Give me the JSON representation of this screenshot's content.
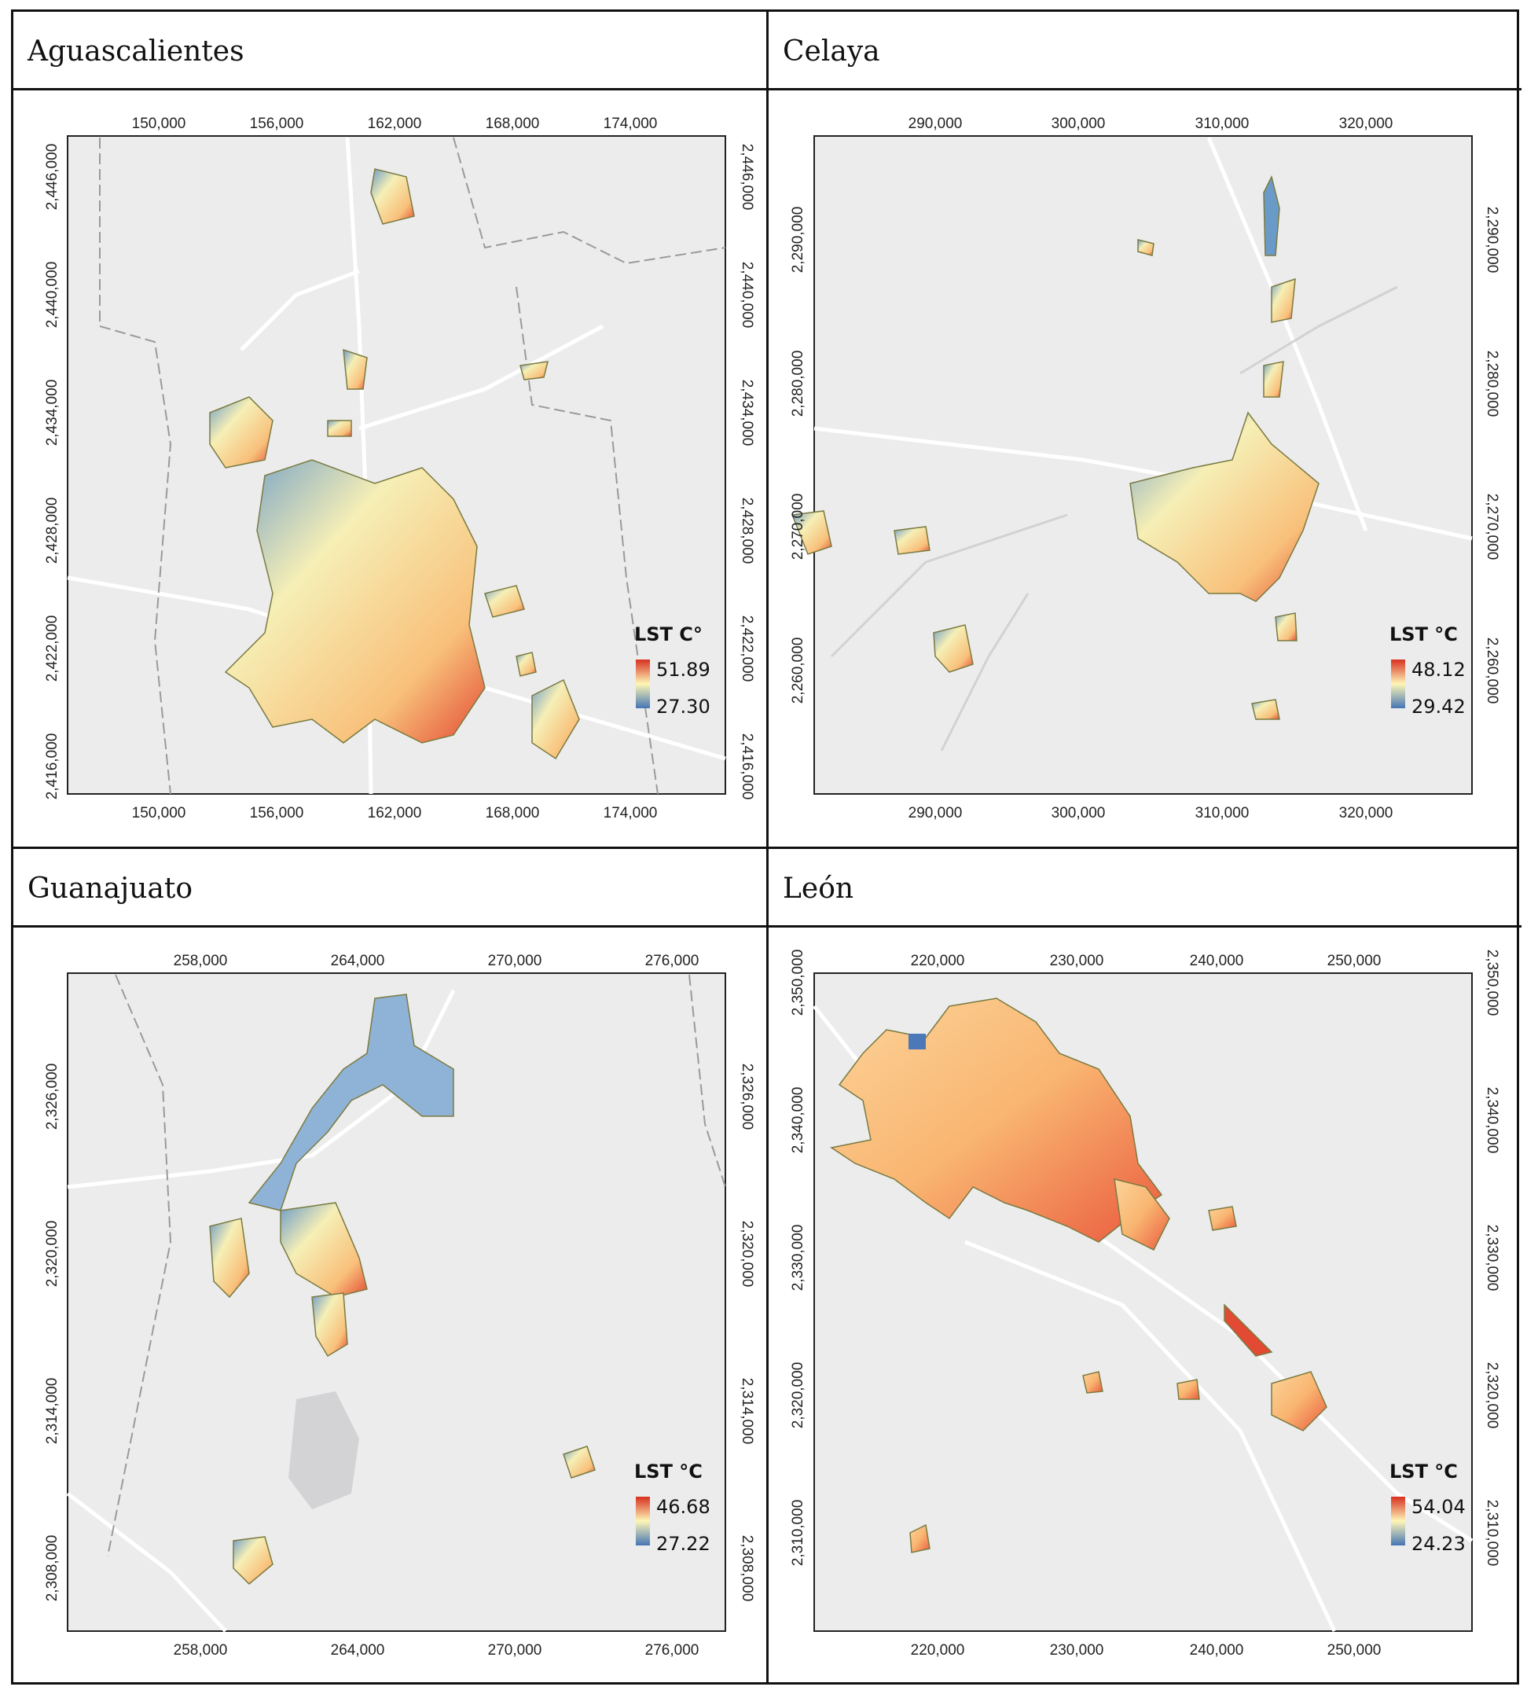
{
  "panels": [
    {
      "title": "Aguascalientes",
      "x_ticks": [
        "150,000",
        "156,000",
        "162,000",
        "168,000",
        "174,000"
      ],
      "y_ticks": [
        "2,446,000",
        "2,440,000",
        "2,434,000",
        "2,428,000",
        "2,422,000",
        "2,416,000"
      ],
      "legend": {
        "title": "LST C°",
        "max": "51.89",
        "min": "27.30"
      }
    },
    {
      "title": "Celaya",
      "x_ticks": [
        "290,000",
        "300,000",
        "310,000",
        "320,000"
      ],
      "y_ticks": [
        "2,290,000",
        "2,280,000",
        "2,270,000",
        "2,260,000"
      ],
      "legend": {
        "title": "LST °C",
        "max": "48.12",
        "min": "29.42"
      }
    },
    {
      "title": "Guanajuato",
      "x_ticks": [
        "258,000",
        "264,000",
        "270,000",
        "276,000"
      ],
      "y_ticks": [
        "2,326,000",
        "2,320,000",
        "2,314,000",
        "2,308,000"
      ],
      "legend": {
        "title": "LST °C",
        "max": "46.68",
        "min": "27.22"
      }
    },
    {
      "title": "León",
      "x_ticks": [
        "220,000",
        "230,000",
        "240,000",
        "250,000"
      ],
      "y_ticks": [
        "2,350,000",
        "2,340,000",
        "2,330,000",
        "2,320,000",
        "2,310,000"
      ],
      "legend": {
        "title": "LST °C",
        "max": "54.04",
        "min": "24.23"
      }
    }
  ],
  "colors": {
    "ramp_hot": "#d7301f",
    "ramp_mid": "#fef6b6",
    "ramp_cool": "#4575b4",
    "basemap": "#ececec"
  }
}
